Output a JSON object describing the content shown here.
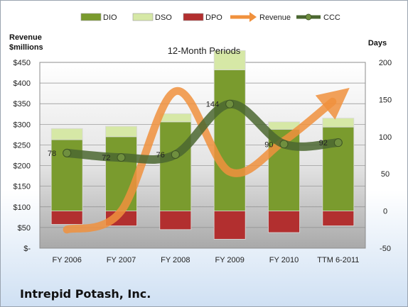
{
  "company": "Intrepid Potash, Inc.",
  "chart_data": {
    "type": "bar",
    "title": "12-Month Periods",
    "left_axis_label": [
      "Revenue",
      "$millions"
    ],
    "right_axis_label": "Days",
    "categories": [
      "FY 2006",
      "FY 2007",
      "FY 2008",
      "FY 2009",
      "FY 2010",
      "TTM 6-2011"
    ],
    "left_ticks": [
      "$-",
      "$50",
      "$100",
      "$150",
      "$200",
      "$250",
      "$300",
      "$350",
      "$400",
      "$450"
    ],
    "left_ylim": [
      0,
      450
    ],
    "right_ticks": [
      "-50",
      "0",
      "50",
      "100",
      "150",
      "200"
    ],
    "right_ylim": [
      -50,
      200
    ],
    "legend": [
      {
        "label": "DIO",
        "color": "#7a9b2e"
      },
      {
        "label": "DSO",
        "color": "#d6e8a6"
      },
      {
        "label": "DPO",
        "color": "#b22f2f"
      },
      {
        "label": "Revenue",
        "color": "#f0913d"
      },
      {
        "label": "CCC",
        "color": "#4b6730"
      }
    ],
    "series": [
      {
        "name": "DIO",
        "axis": "right",
        "values": [
          96,
          100,
          120,
          190,
          110,
          113
        ]
      },
      {
        "name": "DSO",
        "axis": "right",
        "values": [
          15,
          14,
          11,
          26,
          10,
          12
        ]
      },
      {
        "name": "DPO",
        "axis": "right",
        "values": [
          -18,
          -20,
          -25,
          -38,
          -29,
          -20
        ]
      },
      {
        "name": "Revenue",
        "axis": "left",
        "values": [
          45,
          90,
          380,
          185,
          260,
          355
        ]
      },
      {
        "name": "CCC",
        "axis": "right",
        "values": [
          78,
          72,
          76,
          144,
          90,
          92
        ]
      }
    ],
    "ccc_labels": [
      "78",
      "72",
      "76",
      "144",
      "90",
      "92"
    ]
  }
}
